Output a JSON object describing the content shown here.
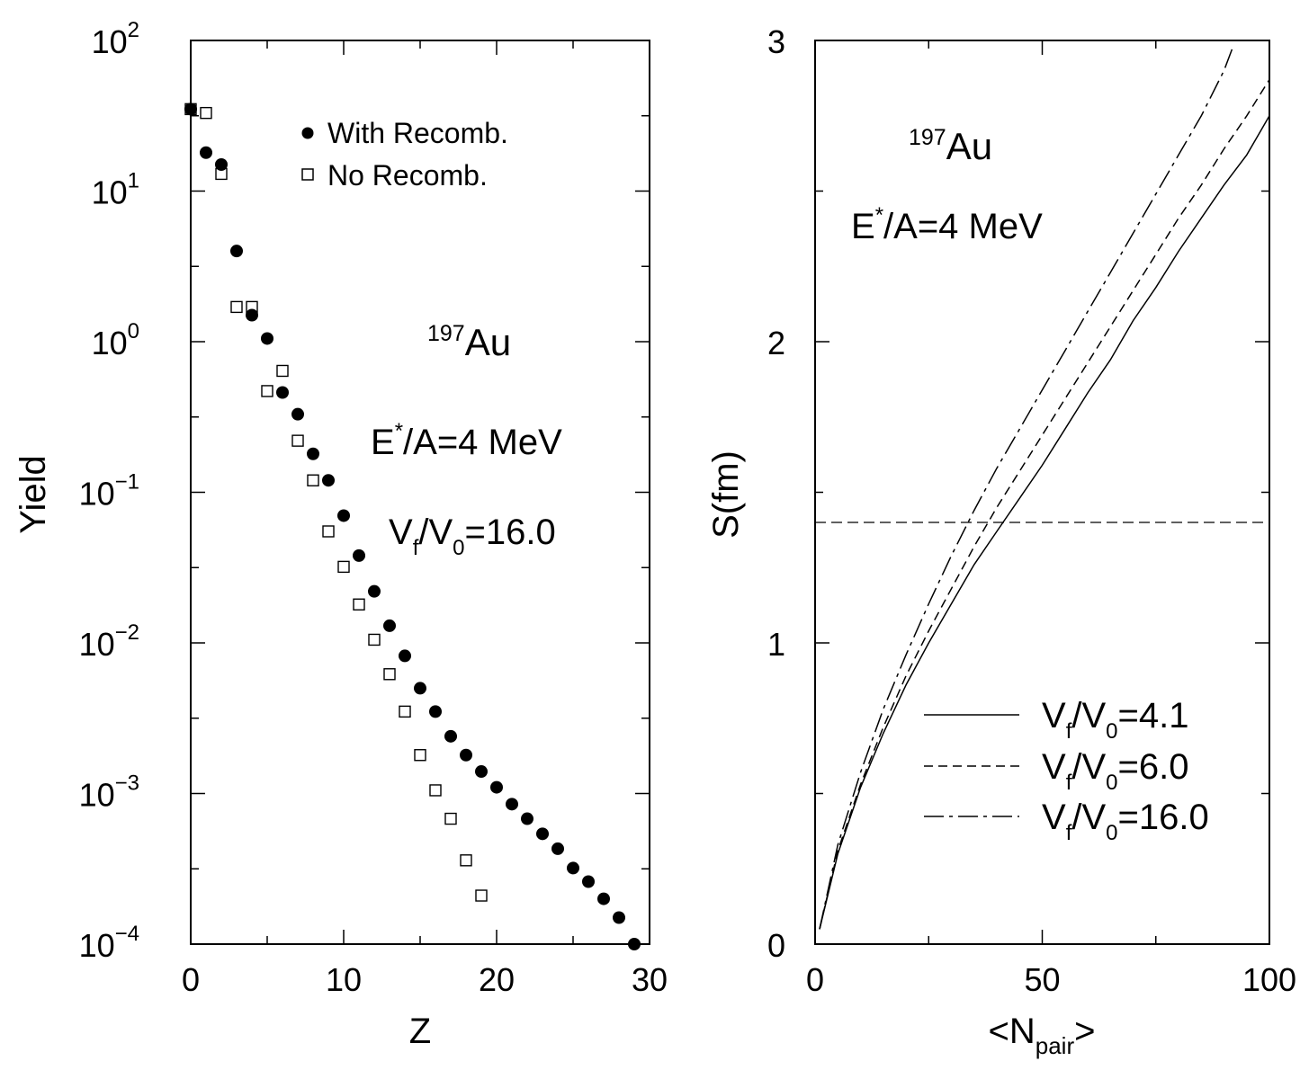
{
  "chart_data": [
    {
      "type": "scatter",
      "xlabel": "Z",
      "ylabel": "Yield",
      "xlim": [
        0,
        30
      ],
      "ylim": [
        0.0001,
        100
      ],
      "yscale": "log",
      "grid": false,
      "x_ticks": [
        "0",
        "10",
        "20",
        "30"
      ],
      "y_ticks": [
        {
          "base": "10",
          "exp": "2"
        },
        {
          "base": "10",
          "exp": "1"
        },
        {
          "base": "10",
          "exp": "0"
        },
        {
          "base": "10",
          "exp": "−1"
        },
        {
          "base": "10",
          "exp": "−2"
        },
        {
          "base": "10",
          "exp": "−3"
        },
        {
          "base": "10",
          "exp": "−4"
        }
      ],
      "legend_position": "top-right",
      "series": [
        {
          "name": "With Recomb.",
          "marker": "filled-circle",
          "x": [
            0,
            1,
            2,
            3,
            4,
            5,
            6,
            7,
            8,
            9,
            10,
            11,
            12,
            13,
            14,
            15,
            16,
            17,
            18,
            19,
            20,
            21,
            22,
            23,
            24,
            25,
            26,
            27,
            28,
            29
          ],
          "y": [
            35,
            18,
            15,
            4.0,
            1.5,
            1.05,
            0.46,
            0.33,
            0.18,
            0.12,
            0.07,
            0.038,
            0.022,
            0.013,
            0.0082,
            0.005,
            0.0035,
            0.0024,
            0.0018,
            0.0014,
            0.0011,
            0.00085,
            0.00068,
            0.00054,
            0.00043,
            0.00032,
            0.00026,
            0.0002,
            0.00015,
            0.0001
          ]
        },
        {
          "name": "No Recomb.",
          "marker": "open-square",
          "x": [
            0,
            1,
            2,
            3,
            4,
            5,
            6,
            7,
            8,
            9,
            10,
            11,
            12,
            13,
            14,
            15,
            16,
            17,
            18,
            19
          ],
          "y": [
            35,
            33,
            13,
            1.7,
            1.7,
            0.47,
            0.64,
            0.22,
            0.12,
            0.055,
            0.032,
            0.018,
            0.0105,
            0.0062,
            0.0035,
            0.0018,
            0.00105,
            0.00068,
            0.00036,
            0.00021
          ]
        }
      ],
      "annotations": {
        "nucleus_mass": "197",
        "nucleus_symbol": "Au",
        "energy_E": "E",
        "energy_star": "*",
        "energy_rest": "/A=4 MeV",
        "vol_V": "V",
        "vol_f": "f",
        "vol_slash": "/V",
        "vol_0": "0",
        "vol_value": "=16.0"
      }
    },
    {
      "type": "line",
      "xlabel_main": "<N",
      "xlabel_sub": "pair",
      "xlabel_end": ">",
      "ylabel": "S(fm)",
      "xlim": [
        0,
        100
      ],
      "ylim": [
        0,
        3
      ],
      "grid": false,
      "x_ticks": [
        "0",
        "50",
        "100"
      ],
      "y_ticks": [
        "0",
        "1",
        "2",
        "3"
      ],
      "legend_position": "bottom-right",
      "reference_line_y": 1.4,
      "series": [
        {
          "name": "4.1",
          "style": "solid",
          "x": [
            1,
            5,
            10,
            15,
            20,
            25,
            30,
            35,
            40,
            45,
            50,
            55,
            60,
            65,
            70,
            75,
            80,
            85,
            90,
            95,
            100
          ],
          "y": [
            0.05,
            0.3,
            0.52,
            0.7,
            0.86,
            1.0,
            1.13,
            1.26,
            1.37,
            1.48,
            1.59,
            1.71,
            1.83,
            1.94,
            2.07,
            2.18,
            2.3,
            2.41,
            2.52,
            2.62,
            2.75
          ]
        },
        {
          "name": "6.0",
          "style": "dashed",
          "x": [
            1,
            5,
            10,
            15,
            20,
            25,
            30,
            35,
            40,
            45,
            50,
            55,
            60,
            65,
            70,
            75,
            80,
            85,
            90,
            95,
            100
          ],
          "y": [
            0.05,
            0.31,
            0.53,
            0.72,
            0.89,
            1.04,
            1.18,
            1.32,
            1.45,
            1.57,
            1.69,
            1.81,
            1.93,
            2.05,
            2.17,
            2.29,
            2.41,
            2.52,
            2.64,
            2.75,
            2.87
          ]
        },
        {
          "name": "16.0",
          "style": "dash-dot",
          "x": [
            1,
            5,
            10,
            15,
            20,
            25,
            30,
            35,
            40,
            45,
            50,
            55,
            60,
            65,
            70,
            75,
            80,
            85,
            90,
            92
          ],
          "y": [
            0.05,
            0.33,
            0.57,
            0.78,
            0.96,
            1.13,
            1.29,
            1.44,
            1.58,
            1.71,
            1.84,
            1.97,
            2.1,
            2.23,
            2.36,
            2.49,
            2.62,
            2.75,
            2.9,
            2.98
          ]
        }
      ],
      "legend": {
        "V": "V",
        "f": "f",
        "slash": "/V",
        "zero": "0",
        "eq": "="
      },
      "annotations": {
        "nucleus_mass": "197",
        "nucleus_symbol": "Au",
        "energy_E": "E",
        "energy_star": "*",
        "energy_rest": "/A=4 MeV"
      }
    }
  ]
}
